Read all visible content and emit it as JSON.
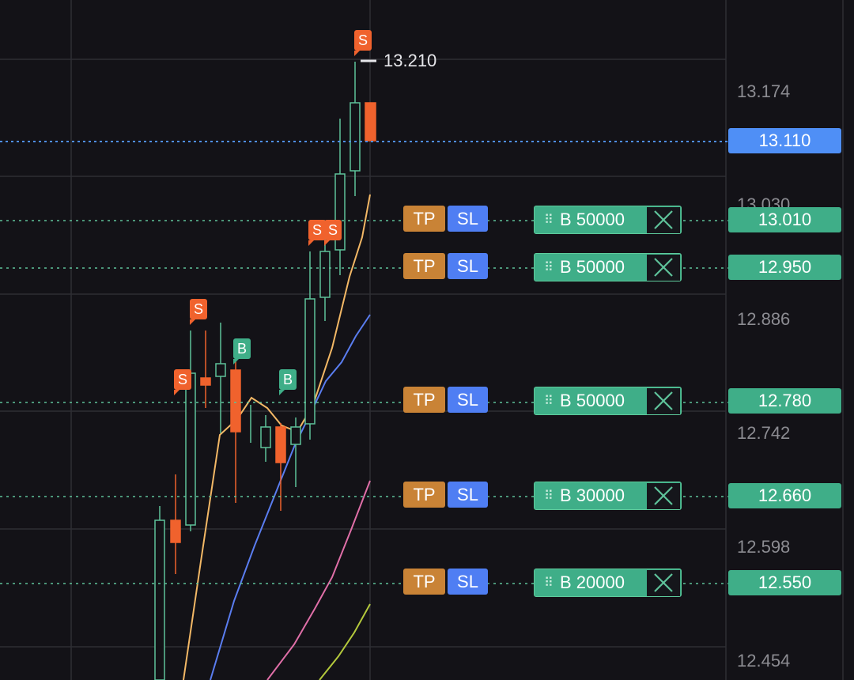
{
  "price_axis": {
    "labels": [
      "13.174",
      "13.030",
      "12.886",
      "12.742",
      "12.598",
      "12.454"
    ]
  },
  "current_price": {
    "value": "13.110",
    "color": "#4f8ff6"
  },
  "high_marker": {
    "value": "13.210"
  },
  "orders": [
    {
      "price": "13.010",
      "label": "B 50000",
      "tp_label": "TP",
      "sl_label": "SL"
    },
    {
      "price": "12.950",
      "label": "B 50000",
      "tp_label": "TP",
      "sl_label": "SL"
    },
    {
      "price": "12.780",
      "label": "B 50000",
      "tp_label": "TP",
      "sl_label": "SL"
    },
    {
      "price": "12.660",
      "label": "B 30000",
      "tp_label": "TP",
      "sl_label": "SL"
    },
    {
      "price": "12.550",
      "label": "B 20000",
      "tp_label": "TP",
      "sl_label": "SL"
    }
  ],
  "trade_markers": [
    {
      "side": "S"
    },
    {
      "side": "S"
    },
    {
      "side": "B"
    },
    {
      "side": "B"
    },
    {
      "side": "S"
    },
    {
      "side": "S"
    },
    {
      "side": "S"
    }
  ],
  "colors": {
    "up": "#5ec29a",
    "down": "#f0622d",
    "ma_fast": "#f3b866",
    "ma_mid": "#5a7df0",
    "ma_slow": "#e06fa8",
    "ma_slowest": "#b4c93c",
    "order_line": "#5ec29a"
  },
  "icons": {
    "grip": "grip-dots-icon",
    "close": "close-x-icon"
  }
}
